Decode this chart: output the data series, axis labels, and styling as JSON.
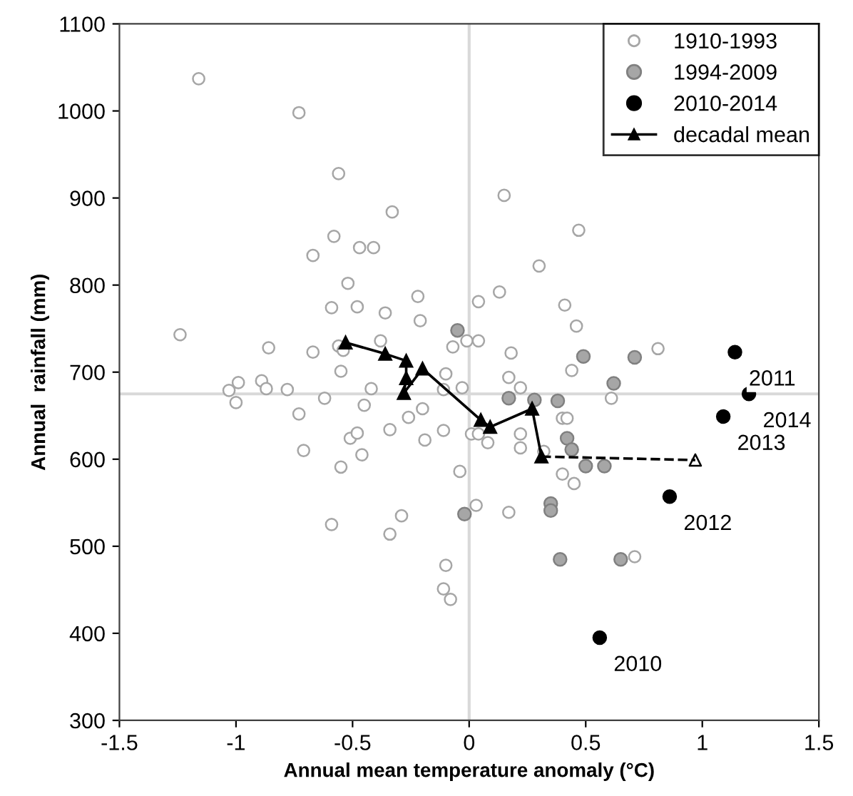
{
  "chart_data": {
    "type": "scatter",
    "xlabel": "Annual mean temperature anomaly (°C)",
    "ylabel": "Annual  rainfall (mm)",
    "xlim": [
      -1.5,
      1.5
    ],
    "ylim": [
      300,
      1100
    ],
    "xticks": [
      -1.5,
      -1,
      -0.5,
      0,
      0.5,
      1,
      1.5
    ],
    "yticks": [
      300,
      400,
      500,
      600,
      700,
      800,
      900,
      1000,
      1100
    ],
    "grid": false,
    "legend": "top right",
    "ref_lines": [
      {
        "axis": "x",
        "value": 0,
        "color": "#d9d9d9"
      },
      {
        "axis": "y",
        "value": 675,
        "color": "#d9d9d9"
      }
    ],
    "series": [
      {
        "name": "1910-1993",
        "marker": "circle",
        "color": "#ffffff",
        "x": [
          -1.16,
          -0.73,
          -0.56,
          -0.33,
          -0.58,
          -0.47,
          -0.41,
          -0.67,
          -0.52,
          -0.59,
          -0.48,
          -0.36,
          -0.22,
          -0.21,
          -1.24,
          -0.86,
          -0.67,
          -0.38,
          -0.56,
          -0.54,
          -0.55,
          -1.03,
          -0.99,
          -1.0,
          -0.89,
          -0.87,
          -0.78,
          -0.62,
          -0.42,
          -0.73,
          -0.45,
          -0.71,
          -0.51,
          -0.48,
          -0.46,
          -0.55,
          -0.34,
          -0.26,
          -0.2,
          -0.19,
          -0.59,
          -0.29,
          -0.34,
          0.15,
          0.47,
          0.3,
          0.04,
          0.13,
          0.41,
          0.46,
          -0.07,
          -0.01,
          0.04,
          0.18,
          0.81,
          0.44,
          -0.1,
          0.17,
          -0.11,
          -0.03,
          0.22,
          -0.11,
          0.01,
          0.04,
          0.08,
          0.22,
          0.22,
          0.4,
          0.42,
          0.61,
          0.32,
          -0.04,
          0.4,
          0.45,
          0.03,
          0.17,
          -0.1,
          -0.11,
          -0.08,
          0.71
        ],
        "values": [
          1037,
          998,
          928,
          884,
          856,
          843,
          843,
          834,
          802,
          774,
          775,
          768,
          787,
          759,
          743,
          728,
          723,
          736,
          730,
          725,
          701,
          679,
          688,
          665,
          690,
          681,
          680,
          670,
          681,
          652,
          662,
          610,
          624,
          630,
          605,
          591,
          634,
          648,
          658,
          622,
          525,
          535,
          514,
          903,
          863,
          822,
          781,
          792,
          777,
          753,
          729,
          736,
          736,
          722,
          727,
          702,
          698,
          694,
          680,
          682,
          682,
          633,
          629,
          629,
          619,
          629,
          613,
          647,
          647,
          670,
          609,
          586,
          583,
          572,
          547,
          539,
          478,
          451,
          439,
          488
        ]
      },
      {
        "name": "1994-2009",
        "marker": "circle",
        "color": "#a6a6a6",
        "x": [
          -0.05,
          0.49,
          0.71,
          0.17,
          0.28,
          0.38,
          0.62,
          0.42,
          0.44,
          0.5,
          0.58,
          0.35,
          0.35,
          -0.02,
          0.39,
          0.65
        ],
        "values": [
          748,
          718,
          717,
          670,
          668,
          667,
          687,
          624,
          611,
          592,
          592,
          549,
          541,
          537,
          485,
          485
        ]
      },
      {
        "name": "2010-2014",
        "marker": "circle",
        "color": "#000000",
        "x": [
          0.56,
          1.14,
          0.86,
          1.09,
          1.2
        ],
        "values": [
          395,
          723,
          557,
          649,
          675
        ]
      },
      {
        "name": "decadal mean",
        "type": "line",
        "marker": "triangle",
        "line_style": "solid",
        "color": "#000000",
        "x": [
          -0.53,
          -0.36,
          -0.27,
          -0.27,
          -0.28,
          -0.2,
          0.05,
          0.09,
          0.27,
          0.31
        ],
        "values": [
          734,
          721,
          713,
          693,
          676,
          704,
          645,
          637,
          658,
          603
        ]
      },
      {
        "type": "line",
        "marker": "none",
        "line_style": "dashed",
        "color": "#000000",
        "x": [
          0.31,
          0.97
        ],
        "values": [
          603,
          599
        ]
      },
      {
        "type": "scatter",
        "marker": "triangle",
        "color": "#ffffff",
        "x": [
          0.97
        ],
        "values": [
          599
        ]
      }
    ],
    "annotations": [
      {
        "text": "2010",
        "x": 0.56,
        "y": 395
      },
      {
        "text": "2011",
        "x": 1.14,
        "y": 723
      },
      {
        "text": "2012",
        "x": 0.86,
        "y": 557
      },
      {
        "text": "2013",
        "x": 1.09,
        "y": 649
      },
      {
        "text": "2014",
        "x": 1.2,
        "y": 675
      }
    ]
  }
}
